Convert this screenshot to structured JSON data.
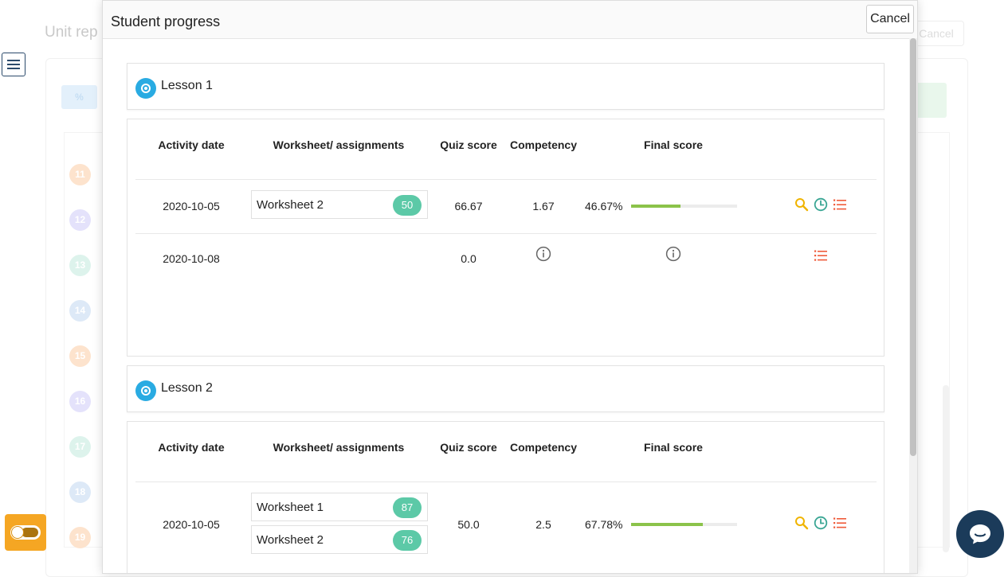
{
  "background": {
    "page_title": "Unit rep",
    "cancel_label": "Cancel",
    "row_numbers": [
      "11",
      "12",
      "13",
      "14",
      "15",
      "16",
      "17",
      "18",
      "19"
    ],
    "row_colors": [
      "#fde3cd",
      "#e4e2fb",
      "#ddf3ec",
      "#dde9f7",
      "#fde3cd",
      "#e4e2fb",
      "#ddf3ec",
      "#dde9f7",
      "#fde3cd"
    ]
  },
  "modal": {
    "title": "Student progress",
    "cancel_label": "Cancel"
  },
  "lessons": [
    {
      "title": "Lesson 1",
      "headers": {
        "activity_date": "Activity date",
        "worksheets": "Worksheet/ assignments",
        "quiz_score": "Quiz score",
        "competency": "Competency",
        "final_score": "Final score"
      },
      "rows": [
        {
          "date": "2020-10-05",
          "worksheets": [
            {
              "name": "Worksheet 2",
              "score": "50"
            }
          ],
          "quiz_score": "66.67",
          "competency": "1.67",
          "final_score": "46.67%",
          "final_fraction": 0.4667,
          "actions": [
            "search-icon",
            "clock-icon",
            "list-icon"
          ]
        },
        {
          "date": "2020-10-08",
          "worksheets": [],
          "quiz_score": "0.0",
          "competency_icon": "info-icon",
          "final_icon": "info-icon",
          "actions": [
            "list-icon"
          ]
        }
      ]
    },
    {
      "title": "Lesson 2",
      "headers": {
        "activity_date": "Activity date",
        "worksheets": "Worksheet/ assignments",
        "quiz_score": "Quiz score",
        "competency": "Competency",
        "final_score": "Final score"
      },
      "rows": [
        {
          "date": "2020-10-05",
          "worksheets": [
            {
              "name": "Worksheet 1",
              "score": "87"
            },
            {
              "name": "Worksheet 2",
              "score": "76"
            }
          ],
          "quiz_score": "50.0",
          "competency": "2.5",
          "final_score": "67.78%",
          "final_fraction": 0.6778,
          "actions": [
            "search-icon",
            "clock-icon",
            "list-icon"
          ]
        }
      ]
    }
  ],
  "colors": {
    "accent": "#29abe2",
    "badge": "#5cc9a7",
    "progress": "#8bc34a",
    "search_icon": "#f0b400",
    "clock_icon": "#3aa694",
    "list_icon": "#ef5b3a",
    "toggle": "#f5a623",
    "chat": "#1b3b5a"
  }
}
